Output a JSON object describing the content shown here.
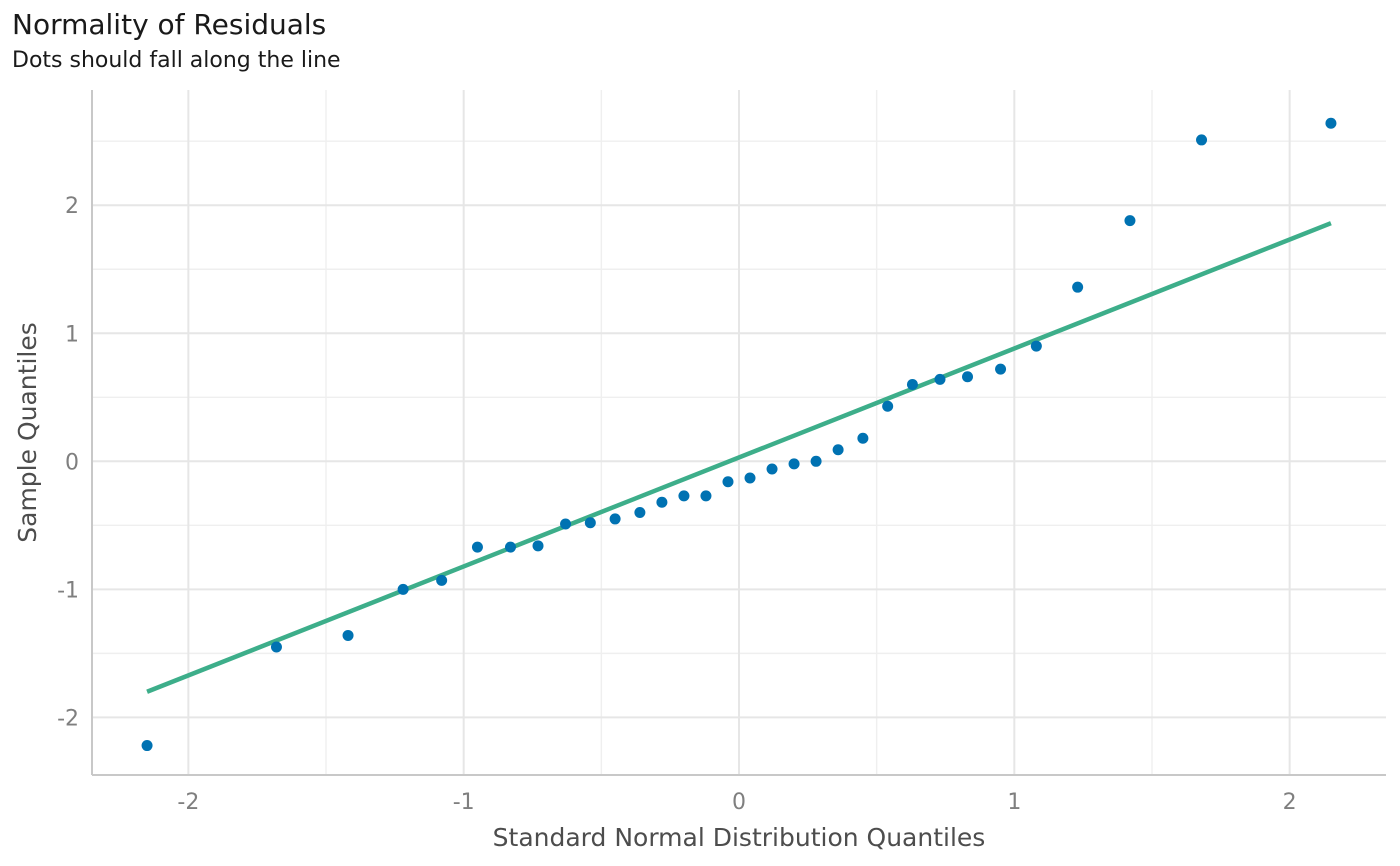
{
  "chart_data": {
    "type": "scatter",
    "title": "Normality of Residuals",
    "subtitle": "Dots should fall along the line",
    "xlabel": "Standard Normal Distribution Quantiles",
    "ylabel": "Sample Quantiles",
    "xlim": [
      -2.35,
      2.35
    ],
    "ylim": [
      -2.45,
      2.9
    ],
    "x_ticks": [
      -2,
      -1,
      0,
      1,
      2
    ],
    "x_tick_labels": [
      "-2",
      "-1",
      "0",
      "1",
      "2"
    ],
    "y_ticks": [
      -2,
      -1,
      0,
      1,
      2
    ],
    "y_tick_labels": [
      "-2",
      "-1",
      "0",
      "1",
      "2"
    ],
    "grid": true,
    "point_color": "#0072B2",
    "line_color": "#3DAE8A",
    "reference_line": {
      "x": [
        -2.15,
        2.15
      ],
      "y": [
        -1.8,
        1.86
      ]
    },
    "points": [
      {
        "x": -2.15,
        "y": -2.22
      },
      {
        "x": -1.68,
        "y": -1.45
      },
      {
        "x": -1.42,
        "y": -1.36
      },
      {
        "x": -1.22,
        "y": -1.0
      },
      {
        "x": -1.08,
        "y": -0.93
      },
      {
        "x": -0.95,
        "y": -0.67
      },
      {
        "x": -0.83,
        "y": -0.67
      },
      {
        "x": -0.73,
        "y": -0.66
      },
      {
        "x": -0.63,
        "y": -0.49
      },
      {
        "x": -0.54,
        "y": -0.48
      },
      {
        "x": -0.45,
        "y": -0.45
      },
      {
        "x": -0.36,
        "y": -0.4
      },
      {
        "x": -0.28,
        "y": -0.32
      },
      {
        "x": -0.2,
        "y": -0.27
      },
      {
        "x": -0.12,
        "y": -0.27
      },
      {
        "x": -0.04,
        "y": -0.16
      },
      {
        "x": 0.04,
        "y": -0.13
      },
      {
        "x": 0.12,
        "y": -0.06
      },
      {
        "x": 0.2,
        "y": -0.02
      },
      {
        "x": 0.28,
        "y": 0.0
      },
      {
        "x": 0.36,
        "y": 0.09
      },
      {
        "x": 0.45,
        "y": 0.18
      },
      {
        "x": 0.54,
        "y": 0.43
      },
      {
        "x": 0.63,
        "y": 0.6
      },
      {
        "x": 0.73,
        "y": 0.64
      },
      {
        "x": 0.83,
        "y": 0.66
      },
      {
        "x": 0.95,
        "y": 0.72
      },
      {
        "x": 1.08,
        "y": 0.9
      },
      {
        "x": 1.23,
        "y": 1.36
      },
      {
        "x": 1.42,
        "y": 1.88
      },
      {
        "x": 1.68,
        "y": 2.51
      },
      {
        "x": 2.15,
        "y": 2.64
      }
    ]
  }
}
